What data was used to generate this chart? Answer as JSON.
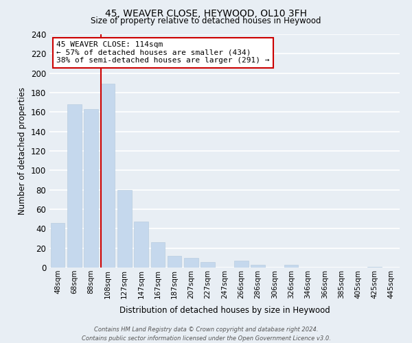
{
  "title": "45, WEAVER CLOSE, HEYWOOD, OL10 3FH",
  "subtitle": "Size of property relative to detached houses in Heywood",
  "xlabel": "Distribution of detached houses by size in Heywood",
  "ylabel": "Number of detached properties",
  "bar_labels": [
    "48sqm",
    "68sqm",
    "88sqm",
    "108sqm",
    "127sqm",
    "147sqm",
    "167sqm",
    "187sqm",
    "207sqm",
    "227sqm",
    "247sqm",
    "266sqm",
    "286sqm",
    "306sqm",
    "326sqm",
    "346sqm",
    "366sqm",
    "385sqm",
    "405sqm",
    "425sqm",
    "445sqm"
  ],
  "bar_values": [
    46,
    168,
    163,
    189,
    80,
    47,
    26,
    12,
    10,
    6,
    0,
    7,
    3,
    0,
    3,
    0,
    0,
    0,
    0,
    1,
    0
  ],
  "bar_color": "#c5d8ed",
  "bar_edge_color": "#b8cde0",
  "ylim": [
    0,
    240
  ],
  "yticks": [
    0,
    20,
    40,
    60,
    80,
    100,
    120,
    140,
    160,
    180,
    200,
    220,
    240
  ],
  "property_line_color": "#cc0000",
  "annotation_title": "45 WEAVER CLOSE: 114sqm",
  "annotation_line1": "← 57% of detached houses are smaller (434)",
  "annotation_line2": "38% of semi-detached houses are larger (291) →",
  "annotation_box_color": "#ffffff",
  "annotation_box_edge": "#cc0000",
  "footer_line1": "Contains HM Land Registry data © Crown copyright and database right 2024.",
  "footer_line2": "Contains public sector information licensed under the Open Government Licence v3.0.",
  "background_color": "#e8eef4",
  "grid_color": "#ffffff"
}
